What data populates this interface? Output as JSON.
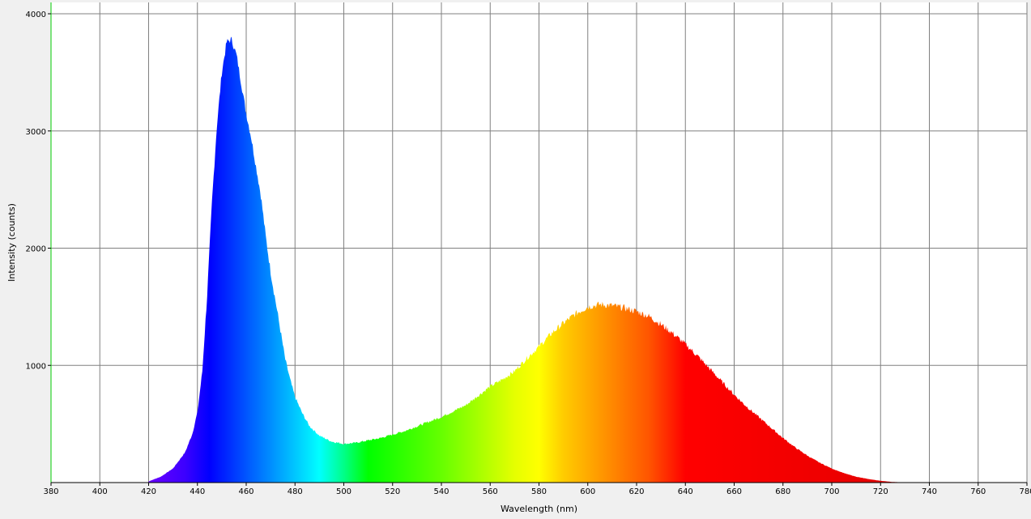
{
  "chart_data": {
    "type": "area",
    "title": "",
    "xlabel": "Wavelength (nm)",
    "ylabel": "Intensity (counts)",
    "xlim": [
      380,
      780
    ],
    "ylim": [
      0,
      4000
    ],
    "grid": true,
    "x_ticks": [
      380,
      400,
      420,
      440,
      460,
      480,
      500,
      520,
      540,
      560,
      580,
      600,
      620,
      640,
      660,
      680,
      700,
      720,
      740,
      760,
      780
    ],
    "y_ticks": [
      1000,
      2000,
      3000,
      4000
    ],
    "fill": "visible-spectrum gradient",
    "series": [
      {
        "x": [
          420,
          425,
          430,
          435,
          438,
          440,
          442,
          444,
          446,
          448,
          450,
          452,
          454,
          456,
          458,
          460,
          462,
          464,
          466,
          468,
          470,
          472,
          474,
          476,
          478,
          480,
          483,
          486,
          490,
          495,
          500,
          505,
          510,
          515,
          520,
          525,
          530,
          535,
          540,
          545,
          550,
          555,
          560,
          565,
          570,
          575,
          580,
          585,
          590,
          595,
          600,
          605,
          610,
          615,
          620,
          625,
          630,
          635,
          640,
          645,
          650,
          655,
          660,
          665,
          670,
          675,
          680,
          685,
          690,
          695,
          700,
          705,
          710,
          715,
          720,
          725,
          730,
          733
        ],
        "y": [
          10,
          50,
          120,
          260,
          420,
          600,
          950,
          1600,
          2400,
          3050,
          3500,
          3760,
          3780,
          3650,
          3400,
          3150,
          2950,
          2700,
          2450,
          2100,
          1800,
          1550,
          1300,
          1050,
          880,
          730,
          590,
          480,
          400,
          350,
          330,
          340,
          360,
          380,
          410,
          440,
          480,
          520,
          560,
          610,
          660,
          740,
          820,
          880,
          950,
          1060,
          1160,
          1270,
          1360,
          1440,
          1500,
          1520,
          1510,
          1490,
          1460,
          1420,
          1350,
          1270,
          1180,
          1080,
          970,
          860,
          750,
          650,
          560,
          470,
          380,
          300,
          230,
          170,
          120,
          80,
          50,
          30,
          15,
          5,
          2,
          0
        ]
      }
    ]
  }
}
